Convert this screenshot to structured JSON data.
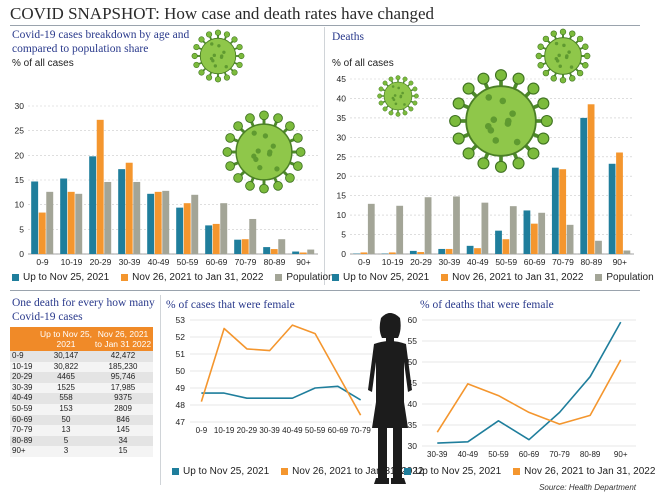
{
  "title": "COVID SNAPSHOT: How case and death rates have changed",
  "source": "Source: Health Department",
  "colors": {
    "teal": "#1f7e9c",
    "orange": "#f4962e",
    "gray": "#a3a597",
    "subtitle": "#2a3a8c",
    "tableHeader": "#f08a28"
  },
  "icons": {
    "virus": "coronavirus-icon",
    "silhouette": "woman-silhouette-icon"
  },
  "table": {
    "title": "One death for every how many Covid-19 cases",
    "headers": [
      "",
      "Up to Nov 25, 2021",
      "Nov 26, 2021 to Jan 31 2022"
    ],
    "rows": [
      [
        "0-9",
        "30,147",
        "42,472"
      ],
      [
        "10-19",
        "30,822",
        "185,230"
      ],
      [
        "20-29",
        "4465",
        "95,746"
      ],
      [
        "30-39",
        "1525",
        "17,985"
      ],
      [
        "40-49",
        "558",
        "9375"
      ],
      [
        "50-59",
        "153",
        "2809"
      ],
      [
        "60-69",
        "50",
        "846"
      ],
      [
        "70-79",
        "13",
        "145"
      ],
      [
        "80-89",
        "5",
        "34"
      ],
      [
        "90+",
        "3",
        "15"
      ]
    ]
  },
  "chart_data": [
    {
      "type": "bar",
      "title": "Covid-19 cases breakdown by age and compared to population share",
      "ylabel": "% of all cases",
      "categories": [
        "0-9",
        "10-19",
        "20-29",
        "30-39",
        "40-49",
        "50-59",
        "60-69",
        "70-79",
        "80-89",
        "90+"
      ],
      "ylim": [
        0,
        30
      ],
      "yticks": [
        0,
        5,
        10,
        15,
        20,
        25,
        30
      ],
      "legend": "bottom",
      "series": [
        {
          "name": "Up to Nov 25, 2021",
          "color": "#1f7e9c",
          "values": [
            14.7,
            15.3,
            19.8,
            17.2,
            12.2,
            9.4,
            5.8,
            2.9,
            1.4,
            0.5
          ]
        },
        {
          "name": "Nov 26, 2021 to Jan 31, 2022",
          "color": "#f4962e",
          "values": [
            8.4,
            12.6,
            27.2,
            18.5,
            12.6,
            10.3,
            6.1,
            3.0,
            1.0,
            0.3
          ]
        },
        {
          "name": "Population",
          "color": "#a3a597",
          "values": [
            12.6,
            12.2,
            14.6,
            14.6,
            12.8,
            12.0,
            10.3,
            7.1,
            3.0,
            0.9
          ]
        }
      ]
    },
    {
      "type": "bar",
      "title": "Deaths",
      "ylabel": "% of all cases",
      "categories": [
        "0-9",
        "10-19",
        "20-29",
        "30-39",
        "40-49",
        "50-59",
        "60-69",
        "70-79",
        "80-89",
        "90+"
      ],
      "ylim": [
        0,
        45
      ],
      "yticks": [
        0,
        5,
        10,
        15,
        20,
        25,
        30,
        35,
        40,
        45
      ],
      "legend": "bottom",
      "series": [
        {
          "name": "Up to Nov 25, 2021",
          "color": "#1f7e9c",
          "values": [
            0.1,
            0.1,
            0.8,
            1.3,
            2.1,
            6.0,
            11.2,
            22.2,
            35.0,
            23.2
          ]
        },
        {
          "name": "Nov 26, 2021 to Jan 31, 2022",
          "color": "#f4962e",
          "values": [
            0.4,
            0.4,
            0.5,
            1.3,
            1.5,
            3.8,
            7.8,
            21.8,
            38.5,
            26.1
          ]
        },
        {
          "name": "Population",
          "color": "#a3a597",
          "values": [
            12.9,
            12.4,
            14.6,
            14.8,
            13.2,
            12.3,
            10.6,
            7.5,
            3.4,
            0.9
          ]
        }
      ]
    },
    {
      "type": "line",
      "title": "% of cases that were female",
      "categories": [
        "0-9",
        "10-19",
        "20-29",
        "30-39",
        "40-49",
        "50-59",
        "60-69",
        "70-79"
      ],
      "ylim": [
        47,
        53
      ],
      "yticks": [
        47,
        48,
        49,
        50,
        51,
        52,
        53
      ],
      "legend": "bottom",
      "series": [
        {
          "name": "Up to Nov 25, 2021",
          "color": "#1f7e9c",
          "values": [
            48.7,
            48.7,
            48.4,
            48.4,
            48.4,
            49.0,
            49.1,
            48.3
          ]
        },
        {
          "name": "Nov 26, 2021 to Jan 31, 2022",
          "color": "#f4962e",
          "values": [
            48.2,
            52.5,
            51.3,
            51.2,
            52.7,
            52.2,
            49.8,
            47.4
          ]
        }
      ]
    },
    {
      "type": "line",
      "title": "% of deaths that were female",
      "categories": [
        "30-39",
        "40-49",
        "50-59",
        "60-69",
        "70-79",
        "80-89",
        "90+"
      ],
      "ylim": [
        30,
        60
      ],
      "yticks": [
        30,
        35,
        40,
        45,
        50,
        55,
        60
      ],
      "legend": "bottom",
      "series": [
        {
          "name": "Up to Nov 25, 2021",
          "color": "#1f7e9c",
          "values": [
            30.7,
            31.0,
            36.0,
            31.5,
            38.0,
            46.5,
            59.5
          ]
        },
        {
          "name": "Nov 26, 2021 to Jan 31, 2022",
          "color": "#f4962e",
          "values": [
            33.3,
            44.8,
            42.0,
            38.0,
            35.2,
            37.3,
            50.5
          ]
        }
      ]
    }
  ]
}
